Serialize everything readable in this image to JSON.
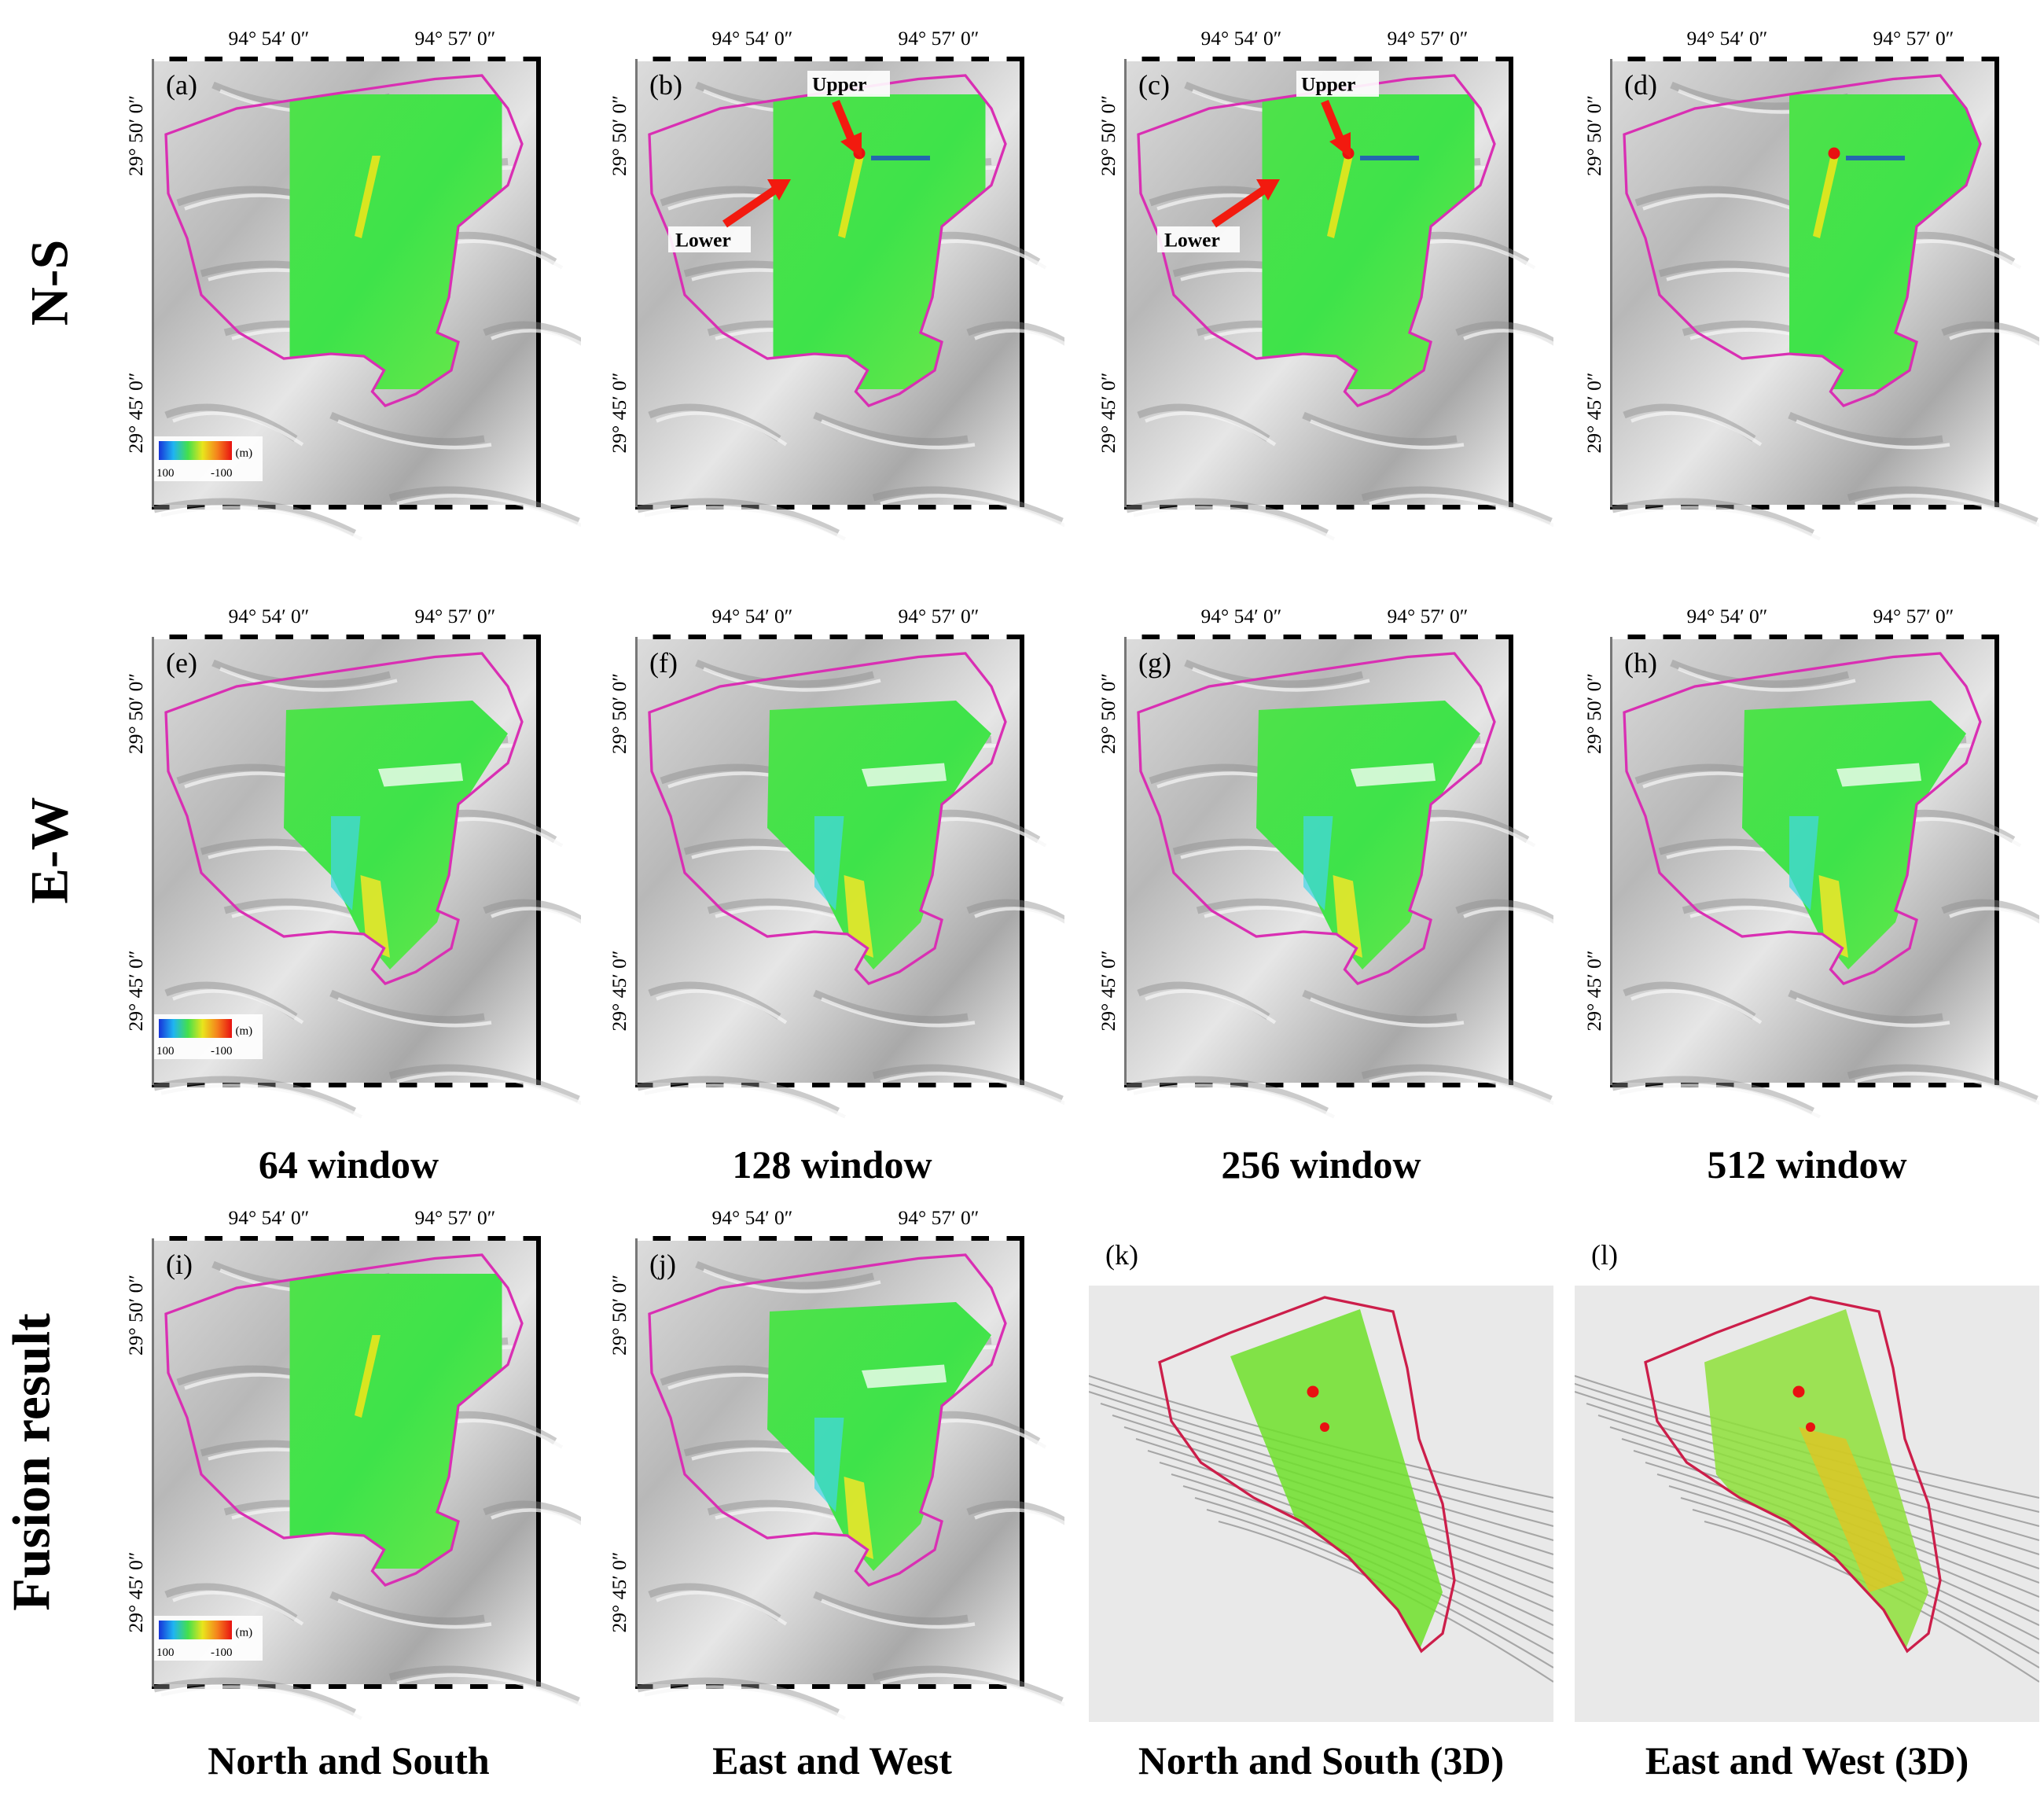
{
  "rows": [
    {
      "label": "N-S",
      "panels": [
        "(a)",
        "(b)",
        "(c)",
        "(d)"
      ]
    },
    {
      "label": "E-W",
      "panels": [
        "(e)",
        "(f)",
        "(g)",
        "(h)"
      ]
    },
    {
      "label": "Fusion result",
      "panels": [
        "(i)",
        "(j)",
        "(k)",
        "(l)"
      ]
    }
  ],
  "lon_labels": [
    "94° 54′ 0″",
    "94° 57′ 0″"
  ],
  "lat_labels": [
    "29° 50′ 0″",
    "29° 45′ 0″"
  ],
  "window_captions": [
    "64 window",
    "128 window",
    "256 window",
    "512 window"
  ],
  "fusion_captions": [
    "North and South",
    "East and West",
    "North and South (3D)",
    "East and West (3D)"
  ],
  "annotations": {
    "upper": "Upper",
    "lower": "Lower"
  },
  "colorbar": {
    "unit": "(m)",
    "min_label": "100",
    "max_label": "-100"
  },
  "colors": {
    "boundary": "#d92fb3",
    "arrow": "#f21a0f",
    "displacement_green": "#3ee34a",
    "colorbar_stops": [
      "#1733d9",
      "#1fb4f2",
      "#44e04c",
      "#e9e51c",
      "#f5821c",
      "#e81111"
    ]
  }
}
